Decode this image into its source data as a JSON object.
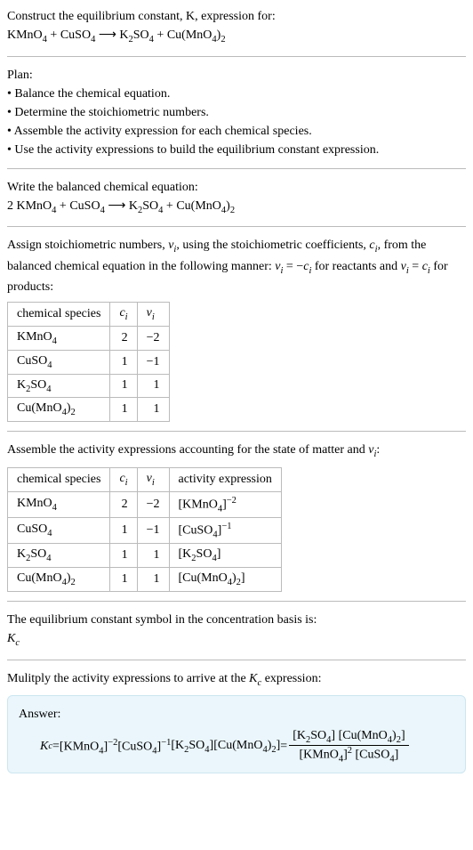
{
  "colors": {
    "divider": "#bbbbbb",
    "answer_bg": "#eaf6fb",
    "answer_border": "#cde6f0",
    "text": "#000000",
    "bg": "#ffffff"
  },
  "font": {
    "family": "Georgia, Times New Roman, serif",
    "size_pt": 14
  },
  "header": {
    "line1": "Construct the equilibrium constant, K, expression for:",
    "equation_lhs_1": "KMnO",
    "equation_lhs_1_sub": "4",
    "plus1": " + ",
    "equation_lhs_2": "CuSO",
    "equation_lhs_2_sub": "4",
    "arrow": " ⟶ ",
    "equation_rhs_1": "K",
    "equation_rhs_1_sub1": "2",
    "equation_rhs_1_mid": "SO",
    "equation_rhs_1_sub2": "4",
    "plus2": " + ",
    "equation_rhs_2": "Cu(MnO",
    "equation_rhs_2_sub1": "4",
    "equation_rhs_2_close": ")",
    "equation_rhs_2_sub2": "2"
  },
  "plan": {
    "title": "Plan:",
    "b1": "• Balance the chemical equation.",
    "b2": "• Determine the stoichiometric numbers.",
    "b3": "• Assemble the activity expression for each chemical species.",
    "b4": "• Use the activity expressions to build the equilibrium constant expression."
  },
  "balanced": {
    "title": "Write the balanced chemical equation:",
    "coef1": "2 ",
    "lhs_1": "KMnO",
    "lhs_1_sub": "4",
    "plus1": " + ",
    "lhs_2": "CuSO",
    "lhs_2_sub": "4",
    "arrow": " ⟶ ",
    "rhs_1": "K",
    "rhs_1_sub1": "2",
    "rhs_1_mid": "SO",
    "rhs_1_sub2": "4",
    "plus2": " + ",
    "rhs_2": "Cu(MnO",
    "rhs_2_sub1": "4",
    "rhs_2_close": ")",
    "rhs_2_sub2": "2"
  },
  "assign": {
    "text1": "Assign stoichiometric numbers, ",
    "nu_i": "ν",
    "nu_i_sub": "i",
    "text2": ", using the stoichiometric coefficients, ",
    "c_i": "c",
    "c_i_sub": "i",
    "text3": ", from the balanced chemical equation in the following manner: ",
    "eq1_l": "ν",
    "eq1_lsub": "i",
    "eq1_m": " = −",
    "eq1_r": "c",
    "eq1_rsub": "i",
    "text4": " for reactants and ",
    "eq2_l": "ν",
    "eq2_lsub": "i",
    "eq2_m": " = ",
    "eq2_r": "c",
    "eq2_rsub": "i",
    "text5": " for products:"
  },
  "table1": {
    "h1": "chemical species",
    "h2": "c",
    "h2_sub": "i",
    "h3": "ν",
    "h3_sub": "i",
    "rows": [
      {
        "sp": "KMnO",
        "sp_sub": "4",
        "c": "2",
        "nu": "−2"
      },
      {
        "sp": "CuSO",
        "sp_sub": "4",
        "c": "1",
        "nu": "−1"
      },
      {
        "sp_pre": "K",
        "sp_sub1": "2",
        "sp_mid": "SO",
        "sp_sub2": "4",
        "c": "1",
        "nu": "1"
      },
      {
        "sp_pre": "Cu(MnO",
        "sp_sub1": "4",
        "sp_mid": ")",
        "sp_sub2": "2",
        "c": "1",
        "nu": "1"
      }
    ]
  },
  "assemble": {
    "text1": "Assemble the activity expressions accounting for the state of matter and ",
    "nu": "ν",
    "nu_sub": "i",
    "colon": ":"
  },
  "table2": {
    "h1": "chemical species",
    "h2": "c",
    "h2_sub": "i",
    "h3": "ν",
    "h3_sub": "i",
    "h4": "activity expression",
    "rows": [
      {
        "sp": "KMnO",
        "sp_sub": "4",
        "c": "2",
        "nu": "−2",
        "ae_open": "[",
        "ae": "KMnO",
        "ae_sub": "4",
        "ae_close": "]",
        "ae_exp": "−2"
      },
      {
        "sp": "CuSO",
        "sp_sub": "4",
        "c": "1",
        "nu": "−1",
        "ae_open": "[",
        "ae": "CuSO",
        "ae_sub": "4",
        "ae_close": "]",
        "ae_exp": "−1"
      },
      {
        "sp_pre": "K",
        "sp_sub1": "2",
        "sp_mid": "SO",
        "sp_sub2": "4",
        "c": "1",
        "nu": "1",
        "ae_open": "[",
        "ae_pre": "K",
        "ae_sub1": "2",
        "ae_mid": "SO",
        "ae_sub2": "4",
        "ae_close": "]"
      },
      {
        "sp_pre": "Cu(MnO",
        "sp_sub1": "4",
        "sp_mid": ")",
        "sp_sub2": "2",
        "c": "1",
        "nu": "1",
        "ae_open": "[",
        "ae_pre": "Cu(MnO",
        "ae_sub1": "4",
        "ae_mid": ")",
        "ae_sub2": "2",
        "ae_close": "]"
      }
    ]
  },
  "symbol": {
    "text": "The equilibrium constant symbol in the concentration basis is:",
    "K": "K",
    "K_sub": "c"
  },
  "multiply": {
    "text1": "Mulitply the activity expressions to arrive at the ",
    "K": "K",
    "K_sub": "c",
    "text2": " expression:"
  },
  "answer": {
    "label": "Answer:",
    "Kc": "K",
    "Kc_sub": "c",
    "eq": " = ",
    "t1": "[KMnO",
    "t1_sub": "4",
    "t1_close": "]",
    "t1_exp": "−2",
    "sp": " ",
    "t2": "[CuSO",
    "t2_sub": "4",
    "t2_close": "]",
    "t2_exp": "−1",
    "t3": "[K",
    "t3_sub1": "2",
    "t3_mid": "SO",
    "t3_sub2": "4",
    "t3_close": "]",
    "t4": "[Cu(MnO",
    "t4_sub1": "4",
    "t4_mid": ")",
    "t4_sub2": "2",
    "t4_close": "]",
    "eq2": " = ",
    "num_a": "[K",
    "num_a_sub1": "2",
    "num_a_mid": "SO",
    "num_a_sub2": "4",
    "num_a_close": "]",
    "num_b": "[Cu(MnO",
    "num_b_sub1": "4",
    "num_b_mid": ")",
    "num_b_sub2": "2",
    "num_b_close": "]",
    "den_a": "[KMnO",
    "den_a_sub": "4",
    "den_a_close": "]",
    "den_a_exp": "2",
    "den_b": "[CuSO",
    "den_b_sub": "4",
    "den_b_close": "]"
  }
}
